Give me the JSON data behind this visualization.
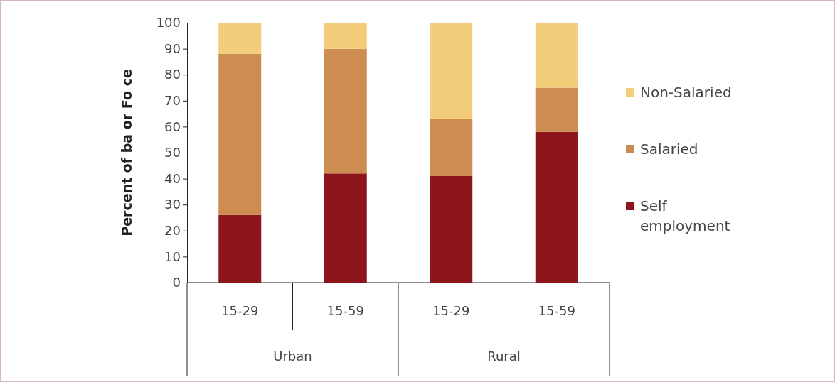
{
  "chart_data": {
    "type": "bar",
    "stacked": true,
    "ylabel": "Percent of ba or Fo ce",
    "categories": [
      "15-29",
      "15-59",
      "15-29",
      "15-59"
    ],
    "series": [
      {
        "name": "Self employment",
        "color": "#8c161b",
        "values": [
          26,
          42,
          41,
          58
        ]
      },
      {
        "name": "Salaried",
        "color": "#cd8c50",
        "values": [
          62,
          48,
          22,
          17
        ]
      },
      {
        "name": "Non-Salaried",
        "color": "#f3cd7a",
        "values": [
          12,
          10,
          37,
          25
        ]
      }
    ],
    "annotations": [
      "Urban",
      "Rural"
    ],
    "ylim": [
      0,
      100
    ],
    "yticks": [
      0,
      10,
      20,
      30,
      40,
      50,
      60,
      70,
      80,
      90,
      100
    ],
    "grid": false,
    "legend": "right"
  }
}
